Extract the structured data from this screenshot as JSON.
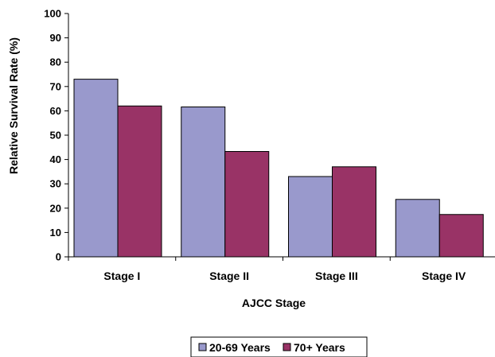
{
  "chart_data": {
    "type": "bar",
    "categories": [
      "Stage I",
      "Stage II",
      "Stage III",
      "Stage IV"
    ],
    "series": [
      {
        "name": "20-69 Years",
        "values": [
          73,
          61.6,
          33,
          23.6
        ],
        "color": "#9999cc"
      },
      {
        "name": "70+ Years",
        "values": [
          62,
          43.3,
          37,
          17.4
        ],
        "color": "#993366"
      }
    ],
    "xlabel": "AJCC Stage",
    "ylabel": "Relative Survival Rate (%)",
    "ylim": [
      0,
      100
    ],
    "yticks": [
      "0",
      "10",
      "20",
      "30",
      "40",
      "50",
      "60",
      "70",
      "80",
      "90",
      "100"
    ],
    "grid": false,
    "legend_position": "bottom"
  }
}
